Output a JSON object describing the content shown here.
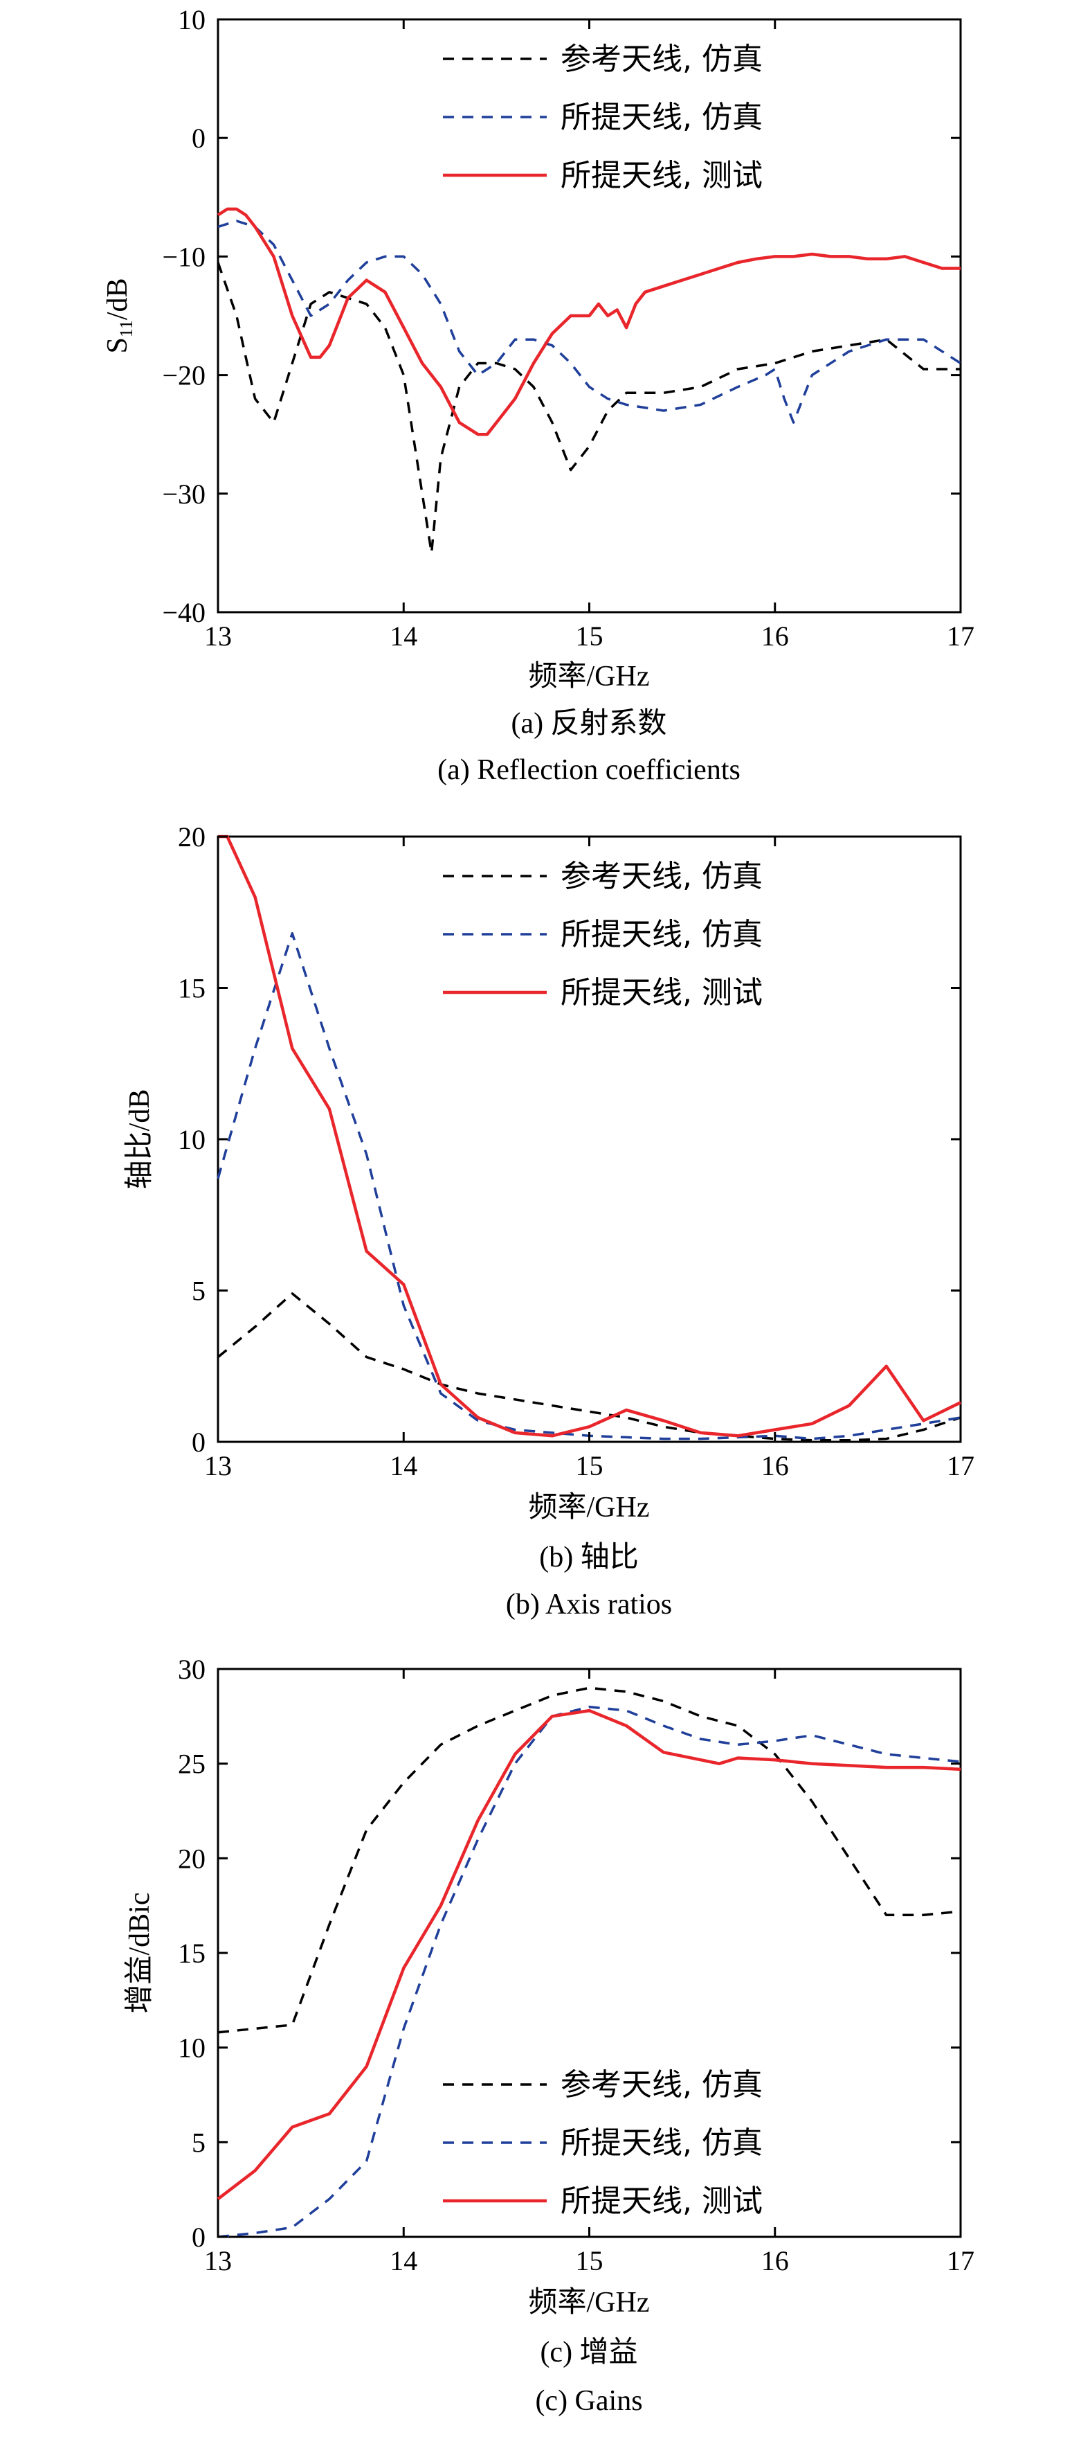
{
  "chart_data": [
    {
      "type": "line",
      "ylabel_main": "S",
      "ylabel_sub": "11",
      "ylabel_rest": "/dB",
      "xlabel": "频率/GHz",
      "caption_cn": "(a) 反射系数",
      "caption_en": "(a) Reflection coefficients",
      "xlim": [
        13,
        17
      ],
      "ylim": [
        -40,
        10
      ],
      "xticks": [
        "13",
        "14",
        "15",
        "16",
        "17"
      ],
      "yticks": [
        "10",
        "0",
        "−10",
        "−20",
        "−30",
        "−40"
      ],
      "legend_position": "top-right",
      "series": [
        {
          "name": "参考天线, 仿真",
          "color": "#000000",
          "dash": "dashed",
          "x": [
            13.0,
            13.1,
            13.2,
            13.3,
            13.4,
            13.5,
            13.6,
            13.7,
            13.8,
            13.9,
            14.0,
            14.1,
            14.15,
            14.2,
            14.3,
            14.4,
            14.5,
            14.6,
            14.7,
            14.8,
            14.9,
            15.0,
            15.1,
            15.2,
            15.4,
            15.6,
            15.8,
            16.0,
            16.2,
            16.4,
            16.6,
            16.8,
            17.0
          ],
          "y": [
            -10.5,
            -15,
            -22,
            -24,
            -19,
            -14,
            -13,
            -13.5,
            -14,
            -16,
            -20,
            -30,
            -35,
            -27,
            -21,
            -19,
            -19,
            -19.5,
            -21,
            -24,
            -28,
            -26,
            -23,
            -21.5,
            -21.5,
            -21,
            -19.5,
            -19,
            -18,
            -17.5,
            -17,
            -19.5,
            -19.5
          ]
        },
        {
          "name": "所提天线, 仿真",
          "color": "#1f3f9a",
          "dash": "dashed",
          "x": [
            13.0,
            13.1,
            13.2,
            13.3,
            13.4,
            13.5,
            13.6,
            13.7,
            13.8,
            13.9,
            14.0,
            14.1,
            14.2,
            14.3,
            14.4,
            14.5,
            14.6,
            14.7,
            14.8,
            14.9,
            15.0,
            15.1,
            15.2,
            15.4,
            15.6,
            15.8,
            15.95,
            16.0,
            16.05,
            16.1,
            16.2,
            16.4,
            16.6,
            16.8,
            17.0
          ],
          "y": [
            -7.5,
            -7,
            -7.5,
            -9,
            -12,
            -15,
            -14,
            -12,
            -10.5,
            -10,
            -10,
            -11.5,
            -14,
            -18,
            -20,
            -19,
            -17,
            -17,
            -17.5,
            -19,
            -21,
            -22,
            -22.5,
            -23,
            -22.5,
            -21,
            -20,
            -19.5,
            -22,
            -24,
            -20,
            -18,
            -17,
            -17,
            -19
          ]
        },
        {
          "name": "所提天线, 测试",
          "color": "#e8262b",
          "dash": "solid",
          "x": [
            13.0,
            13.05,
            13.1,
            13.15,
            13.2,
            13.3,
            13.4,
            13.5,
            13.55,
            13.6,
            13.65,
            13.7,
            13.8,
            13.85,
            13.9,
            14.0,
            14.1,
            14.2,
            14.3,
            14.4,
            14.45,
            14.5,
            14.6,
            14.7,
            14.8,
            14.9,
            15.0,
            15.05,
            15.1,
            15.15,
            15.2,
            15.25,
            15.3,
            15.4,
            15.5,
            15.6,
            15.7,
            15.8,
            15.9,
            16.0,
            16.1,
            16.2,
            16.3,
            16.4,
            16.5,
            16.6,
            16.7,
            16.8,
            16.9,
            17.0
          ],
          "y": [
            -6.5,
            -6,
            -6,
            -6.5,
            -7.5,
            -10,
            -15,
            -18.5,
            -18.5,
            -17.5,
            -15.5,
            -13.5,
            -12,
            -12.5,
            -13,
            -16,
            -19,
            -21,
            -24,
            -25,
            -25,
            -24,
            -22,
            -19,
            -16.5,
            -15,
            -15,
            -14,
            -15,
            -14.5,
            -16,
            -14,
            -13,
            -12.5,
            -12,
            -11.5,
            -11,
            -10.5,
            -10.2,
            -10,
            -10,
            -9.8,
            -10,
            -10,
            -10.2,
            -10.2,
            -10,
            -10.5,
            -11,
            -11
          ]
        }
      ]
    },
    {
      "type": "line",
      "ylabel": "轴比/dB",
      "xlabel": "频率/GHz",
      "caption_cn": "(b) 轴比",
      "caption_en": "(b) Axis ratios",
      "xlim": [
        13,
        17
      ],
      "ylim": [
        0,
        20
      ],
      "xticks": [
        "13",
        "14",
        "15",
        "16",
        "17"
      ],
      "yticks": [
        "20",
        "15",
        "10",
        "5",
        "0"
      ],
      "legend_position": "top-right",
      "series": [
        {
          "name": "参考天线, 仿真",
          "color": "#000000",
          "dash": "dashed",
          "x": [
            13.0,
            13.2,
            13.4,
            13.6,
            13.8,
            14.0,
            14.2,
            14.4,
            14.6,
            14.8,
            15.0,
            15.2,
            15.4,
            15.6,
            15.8,
            16.0,
            16.2,
            16.4,
            16.6,
            16.8,
            17.0
          ],
          "y": [
            2.8,
            3.8,
            4.9,
            3.9,
            2.8,
            2.4,
            1.9,
            1.6,
            1.4,
            1.2,
            1.0,
            0.8,
            0.5,
            0.3,
            0.2,
            0.1,
            0.05,
            0.05,
            0.1,
            0.4,
            0.8
          ]
        },
        {
          "name": "所提天线, 仿真",
          "color": "#1f3f9a",
          "dash": "dashed",
          "x": [
            13.0,
            13.2,
            13.4,
            13.6,
            13.8,
            14.0,
            14.2,
            14.4,
            14.6,
            14.8,
            15.0,
            15.2,
            15.4,
            15.6,
            15.8,
            16.0,
            16.2,
            16.4,
            16.6,
            16.8,
            17.0
          ],
          "y": [
            8.7,
            13,
            16.8,
            13,
            9.5,
            4.5,
            1.6,
            0.7,
            0.4,
            0.3,
            0.2,
            0.15,
            0.1,
            0.1,
            0.15,
            0.2,
            0.1,
            0.2,
            0.4,
            0.6,
            0.8
          ]
        },
        {
          "name": "所提天线, 测试",
          "color": "#e8262b",
          "dash": "solid",
          "x": [
            13.0,
            13.05,
            13.2,
            13.4,
            13.6,
            13.8,
            14.0,
            14.2,
            14.4,
            14.6,
            14.8,
            15.0,
            15.2,
            15.4,
            15.6,
            15.8,
            16.0,
            16.2,
            16.4,
            16.6,
            16.8,
            17.0
          ],
          "y": [
            20,
            20,
            18,
            13,
            11,
            6.3,
            5.2,
            1.9,
            0.8,
            0.3,
            0.2,
            0.5,
            1.05,
            0.7,
            0.3,
            0.2,
            0.4,
            0.6,
            1.2,
            2.5,
            0.7,
            1.3
          ]
        }
      ]
    },
    {
      "type": "line",
      "ylabel": "增益/dBic",
      "xlabel": "频率/GHz",
      "caption_cn": "(c) 增益",
      "caption_en": "(c) Gains",
      "xlim": [
        13,
        17
      ],
      "ylim": [
        0,
        30
      ],
      "xticks": [
        "13",
        "14",
        "15",
        "16",
        "17"
      ],
      "yticks": [
        "30",
        "25",
        "20",
        "15",
        "10",
        "5",
        "0"
      ],
      "legend_position": "bottom-right",
      "series": [
        {
          "name": "参考天线, 仿真",
          "color": "#000000",
          "dash": "dashed",
          "x": [
            13.0,
            13.2,
            13.4,
            13.6,
            13.8,
            14.0,
            14.2,
            14.4,
            14.6,
            14.8,
            15.0,
            15.2,
            15.4,
            15.6,
            15.8,
            16.0,
            16.2,
            16.4,
            16.6,
            16.8,
            17.0
          ],
          "y": [
            10.8,
            11,
            11.2,
            16.5,
            21.5,
            24,
            26,
            27,
            27.8,
            28.6,
            29,
            28.8,
            28.3,
            27.5,
            27,
            25.5,
            23,
            20,
            17,
            17,
            17.2
          ]
        },
        {
          "name": "所提天线, 仿真",
          "color": "#1f3f9a",
          "dash": "dashed",
          "x": [
            13.0,
            13.2,
            13.4,
            13.6,
            13.8,
            14.0,
            14.2,
            14.4,
            14.6,
            14.8,
            15.0,
            15.2,
            15.4,
            15.6,
            15.8,
            16.0,
            16.2,
            16.4,
            16.6,
            16.8,
            17.0
          ],
          "y": [
            0,
            0.2,
            0.5,
            2,
            4,
            11,
            16.5,
            21,
            25,
            27.5,
            28,
            27.8,
            27,
            26.3,
            26,
            26.2,
            26.5,
            26,
            25.5,
            25.3,
            25.1
          ]
        },
        {
          "name": "所提天线, 测试",
          "color": "#e8262b",
          "dash": "solid",
          "x": [
            13.0,
            13.2,
            13.4,
            13.6,
            13.8,
            14.0,
            14.2,
            14.4,
            14.6,
            14.8,
            15.0,
            15.2,
            15.4,
            15.6,
            15.7,
            15.8,
            16.0,
            16.2,
            16.4,
            16.6,
            16.8,
            17.0
          ],
          "y": [
            2,
            3.5,
            5.8,
            6.5,
            9,
            14.2,
            17.5,
            22,
            25.5,
            27.5,
            27.8,
            27,
            25.6,
            25.2,
            25,
            25.3,
            25.2,
            25,
            24.9,
            24.8,
            24.8,
            24.7
          ]
        }
      ]
    }
  ]
}
